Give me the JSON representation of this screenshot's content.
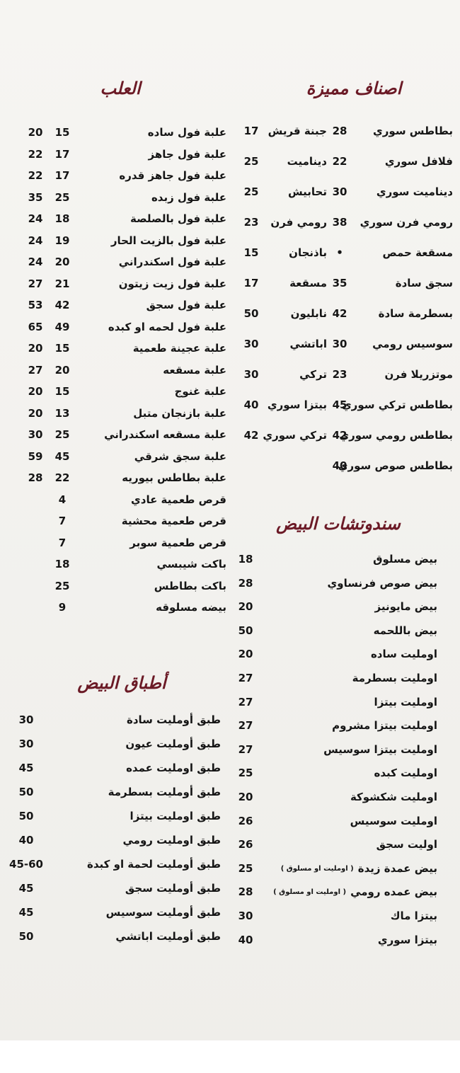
{
  "featured": {
    "title": "اصناف مميزة",
    "rows": [
      [
        {
          "name": "بطاطس سوري",
          "price": "28"
        },
        {
          "name": "جبنة قريش",
          "price": "17"
        }
      ],
      [
        {
          "name": "فلافل سوري",
          "price": "22"
        },
        {
          "name": "ديناميت",
          "price": "25"
        }
      ],
      [
        {
          "name": "ديناميت سوري",
          "price": "30"
        },
        {
          "name": "تحابيش",
          "price": "25"
        }
      ],
      [
        {
          "name": "رومي فرن سوري",
          "price": "38"
        },
        {
          "name": "رومي فرن",
          "price": "23"
        }
      ],
      [
        {
          "name": "مسقعة حمص",
          "price": "•"
        },
        {
          "name": "باذنجان",
          "price": "15"
        }
      ],
      [
        {
          "name": "سجق سادة",
          "price": "35"
        },
        {
          "name": "مسقعة",
          "price": "17"
        }
      ],
      [
        {
          "name": "بسطرمة سادة",
          "price": "42"
        },
        {
          "name": "نابليون",
          "price": "50"
        }
      ],
      [
        {
          "name": "سوسيس رومي",
          "price": "30"
        },
        {
          "name": "اباتشي",
          "price": "30"
        }
      ],
      [
        {
          "name": "موتزريلا فرن",
          "price": "23"
        },
        {
          "name": "تركي",
          "price": "30"
        }
      ],
      [
        {
          "name": "بطاطس تركي سوري",
          "price": "45"
        },
        {
          "name": "بيتزا سوري",
          "price": "40"
        }
      ],
      [
        {
          "name": "بطاطس رومي سوري",
          "price": "42"
        },
        {
          "name": "تركي سوري",
          "price": "42"
        }
      ],
      [
        {
          "name": "بطاطس صوص سوري",
          "price": "40"
        }
      ]
    ]
  },
  "sandwiches": {
    "title": "سندوتشات البيض",
    "items": [
      {
        "name": "بيض مسلوق",
        "price": "18"
      },
      {
        "name": "بيض صوص فرنساوي",
        "price": "28"
      },
      {
        "name": "بيض مايونيز",
        "price": "20"
      },
      {
        "name": "بيض باللحمه",
        "price": "50"
      },
      {
        "name": "اومليت ساده",
        "price": "20"
      },
      {
        "name": "اومليت بسطرمة",
        "price": "27"
      },
      {
        "name": "اومليت بيتزا",
        "price": "27"
      },
      {
        "name": "اومليت بيتزا مشروم",
        "price": "27"
      },
      {
        "name": "اومليت بيتزا سوسيس",
        "price": "27"
      },
      {
        "name": "اومليت كبده",
        "price": "25"
      },
      {
        "name": "اومليت شكشوكة",
        "price": "20"
      },
      {
        "name": "اومليت سوسيس",
        "price": "26"
      },
      {
        "name": "اوليت سجق",
        "price": "26"
      },
      {
        "name": "بيض عمدة زيدة",
        "note": "( اومليت او مسلوق )",
        "price": "25"
      },
      {
        "name": "بيض عمده رومي",
        "note": "( اومليت او مسلوق )",
        "price": "28"
      },
      {
        "name": "بيتزا ماك",
        "price": "30"
      },
      {
        "name": "بيتزا سوري",
        "price": "40"
      }
    ]
  },
  "boxes": {
    "title": "العلب",
    "items": [
      {
        "name": "علبة فول ساده",
        "prices": [
          "15",
          "20"
        ]
      },
      {
        "name": "علبة فول جاهز",
        "prices": [
          "17",
          "22"
        ]
      },
      {
        "name": "علبة فول جاهز قدره",
        "prices": [
          "17",
          "22"
        ]
      },
      {
        "name": "علبة فول زبده",
        "prices": [
          "25",
          "35"
        ]
      },
      {
        "name": "علبة فول بالصلصة",
        "prices": [
          "18",
          "24"
        ]
      },
      {
        "name": "علبة فول بالزيت الحار",
        "prices": [
          "19",
          "24"
        ]
      },
      {
        "name": "علبة فول اسكندراني",
        "prices": [
          "20",
          "24"
        ]
      },
      {
        "name": "علبة فول زيت زيتون",
        "prices": [
          "21",
          "27"
        ]
      },
      {
        "name": "علبة فول سجق",
        "prices": [
          "42",
          "53"
        ]
      },
      {
        "name": "علبة فول لحمه او كبده",
        "prices": [
          "49",
          "65"
        ]
      },
      {
        "name": "علبة عجينة طعمية",
        "prices": [
          "15",
          "20"
        ]
      },
      {
        "name": "علبة مسقعه",
        "prices": [
          "20",
          "27"
        ]
      },
      {
        "name": "علبة غنوج",
        "prices": [
          "15",
          "20"
        ]
      },
      {
        "name": "علبة بازنجان متبل",
        "prices": [
          "13",
          "20"
        ]
      },
      {
        "name": "علبة مسقعه اسكندراني",
        "prices": [
          "25",
          "30"
        ]
      },
      {
        "name": "علبة سجق شرقي",
        "prices": [
          "45",
          "59"
        ]
      },
      {
        "name": "علبة بطاطس بيوريه",
        "prices": [
          "22",
          "28"
        ]
      },
      {
        "name": "قرص طعمية عادي",
        "prices": [
          "4"
        ]
      },
      {
        "name": "قرص طعمية محشية",
        "prices": [
          "7"
        ]
      },
      {
        "name": "قرص طعمية سوبر",
        "prices": [
          "7"
        ]
      },
      {
        "name": "باكت شيبسي",
        "prices": [
          "18"
        ]
      },
      {
        "name": "باكت بطاطس",
        "prices": [
          "25"
        ]
      },
      {
        "name": "بيضه مسلوقه",
        "prices": [
          "9"
        ]
      }
    ]
  },
  "plates": {
    "title": "أطباق البيض",
    "items": [
      {
        "name": "طبق أومليت سادة",
        "price": "30"
      },
      {
        "name": "طبق أومليت عيون",
        "price": "30"
      },
      {
        "name": "طبق اومليت عمده",
        "price": "45"
      },
      {
        "name": "طبق أومليت بسطرمة",
        "price": "50"
      },
      {
        "name": "طبق اومليت بيتزا",
        "price": "50"
      },
      {
        "name": "طبق اومليت رومي",
        "price": "40"
      },
      {
        "name": "طبق أومليت لحمة او كبدة",
        "price": "45-60"
      },
      {
        "name": "طبق أومليت سجق",
        "price": "45"
      },
      {
        "name": "طبق أومليت سوسيس",
        "price": "45"
      },
      {
        "name": "طبق أومليت اباتشي",
        "price": "50"
      }
    ]
  }
}
